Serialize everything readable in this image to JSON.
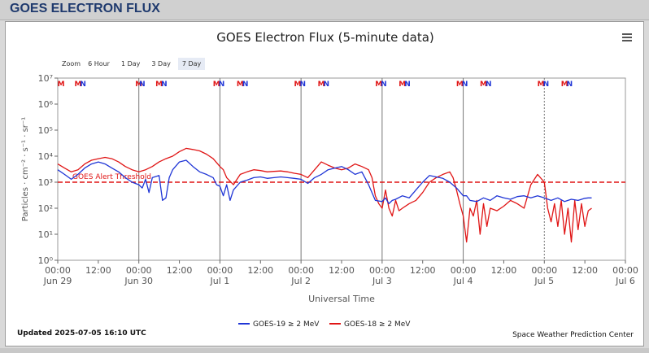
{
  "header": {
    "title": "GOES ELECTRON FLUX"
  },
  "zoom": {
    "label": "Zoom",
    "options": [
      "6 Hour",
      "1 Day",
      "3 Day",
      "7 Day"
    ],
    "active": "7 Day"
  },
  "footer": {
    "updated": "Updated 2025-07-05 16:10 UTC",
    "credit": "Space Weather Prediction Center"
  },
  "colors": {
    "goes19": "#1f35d6",
    "goes18": "#e01515",
    "threshold": "#e01515",
    "markerM": "#e01515",
    "markerN": "#1f35d6"
  },
  "chart_data": {
    "type": "line",
    "title": "GOES Electron Flux (5-minute data)",
    "xlabel": "Universal Time",
    "ylabel": "Particles · cm⁻² · s⁻¹ · sr⁻¹",
    "yscale": "log",
    "ylim": [
      1,
      10000000
    ],
    "y_ticks": [
      "10⁰",
      "10¹",
      "10²",
      "10³",
      "10⁴",
      "10⁵",
      "10⁶",
      "10⁷"
    ],
    "x_range_hours": [
      0,
      168
    ],
    "x_ticks": [
      {
        "h": 0,
        "time": "00:00",
        "date": "Jun 29"
      },
      {
        "h": 12,
        "time": "12:00",
        "date": ""
      },
      {
        "h": 24,
        "time": "00:00",
        "date": "Jun 30"
      },
      {
        "h": 36,
        "time": "12:00",
        "date": ""
      },
      {
        "h": 48,
        "time": "00:00",
        "date": "Jul 1"
      },
      {
        "h": 60,
        "time": "12:00",
        "date": ""
      },
      {
        "h": 72,
        "time": "00:00",
        "date": "Jul 2"
      },
      {
        "h": 84,
        "time": "12:00",
        "date": ""
      },
      {
        "h": 96,
        "time": "00:00",
        "date": "Jul 3"
      },
      {
        "h": 108,
        "time": "12:00",
        "date": ""
      },
      {
        "h": 120,
        "time": "00:00",
        "date": "Jul 4"
      },
      {
        "h": 132,
        "time": "12:00",
        "date": ""
      },
      {
        "h": 144,
        "time": "00:00",
        "date": "Jul 5"
      },
      {
        "h": 156,
        "time": "12:00",
        "date": ""
      },
      {
        "h": 168,
        "time": "00:00",
        "date": "Jul 6"
      }
    ],
    "threshold": {
      "value": 1000,
      "label": "GOES Alert Threshold"
    },
    "markers": [
      {
        "h": 1,
        "t": "M"
      },
      {
        "h": 6,
        "t": "M"
      },
      {
        "h": 7.5,
        "t": "N"
      },
      {
        "h": 24,
        "t": "M"
      },
      {
        "h": 25,
        "t": "N"
      },
      {
        "h": 30,
        "t": "M"
      },
      {
        "h": 31.5,
        "t": "N"
      },
      {
        "h": 47,
        "t": "M"
      },
      {
        "h": 48.5,
        "t": "N"
      },
      {
        "h": 54,
        "t": "M"
      },
      {
        "h": 55.5,
        "t": "N"
      },
      {
        "h": 71,
        "t": "M"
      },
      {
        "h": 72.5,
        "t": "N"
      },
      {
        "h": 78,
        "t": "M"
      },
      {
        "h": 79.5,
        "t": "N"
      },
      {
        "h": 95,
        "t": "M"
      },
      {
        "h": 96.5,
        "t": "N"
      },
      {
        "h": 102,
        "t": "M"
      },
      {
        "h": 103.5,
        "t": "N"
      },
      {
        "h": 119,
        "t": "M"
      },
      {
        "h": 120.5,
        "t": "N"
      },
      {
        "h": 126,
        "t": "M"
      },
      {
        "h": 127.5,
        "t": "N"
      },
      {
        "h": 143,
        "t": "M"
      },
      {
        "h": 144.5,
        "t": "N"
      },
      {
        "h": 150,
        "t": "M"
      },
      {
        "h": 151.5,
        "t": "N"
      }
    ],
    "series": [
      {
        "name": "GOES-19 ≥ 2 MeV",
        "color": "#1f35d6",
        "x": [
          0,
          2,
          4,
          6,
          8,
          10,
          12,
          14,
          16,
          18,
          20,
          22,
          24,
          25,
          26,
          27,
          28,
          30,
          31,
          32,
          33,
          34,
          36,
          38,
          40,
          42,
          44,
          46,
          47,
          48,
          49,
          50,
          51,
          52,
          54,
          56,
          58,
          60,
          62,
          64,
          66,
          68,
          70,
          72,
          74,
          76,
          78,
          80,
          82,
          84,
          86,
          88,
          90,
          92,
          94,
          96,
          97,
          98,
          99,
          100,
          102,
          104,
          106,
          108,
          110,
          112,
          114,
          116,
          118,
          120,
          121,
          122,
          124,
          126,
          128,
          130,
          132,
          134,
          136,
          138,
          140,
          142,
          144,
          146,
          148,
          150,
          152,
          154,
          156,
          157,
          158
        ],
        "y": [
          3000,
          2000,
          1300,
          2000,
          3500,
          5000,
          6000,
          5000,
          3500,
          2500,
          1500,
          1000,
          800,
          600,
          1300,
          400,
          1500,
          1800,
          200,
          250,
          1500,
          3000,
          6000,
          7000,
          4000,
          2500,
          2000,
          1500,
          800,
          700,
          300,
          800,
          200,
          500,
          1000,
          1200,
          1500,
          1600,
          1400,
          1500,
          1600,
          1500,
          1400,
          1300,
          900,
          1500,
          2000,
          3000,
          3500,
          4000,
          3000,
          2000,
          2500,
          800,
          200,
          180,
          250,
          150,
          200,
          220,
          300,
          250,
          500,
          1000,
          1800,
          1600,
          1400,
          1000,
          600,
          300,
          300,
          200,
          180,
          250,
          200,
          300,
          250,
          220,
          280,
          300,
          250,
          300,
          250,
          200,
          250,
          180,
          220,
          200,
          240,
          250,
          250
        ]
      },
      {
        "name": "GOES-18 ≥ 2 MeV",
        "color": "#e01515",
        "x": [
          0,
          2,
          4,
          6,
          8,
          10,
          12,
          14,
          16,
          18,
          20,
          22,
          24,
          26,
          28,
          30,
          32,
          34,
          36,
          38,
          40,
          42,
          44,
          46,
          48,
          49,
          50,
          52,
          54,
          56,
          58,
          60,
          62,
          64,
          66,
          68,
          70,
          72,
          74,
          76,
          78,
          80,
          82,
          84,
          86,
          88,
          90,
          92,
          93,
          94,
          95,
          96,
          97,
          98,
          99,
          100,
          101,
          102,
          104,
          106,
          108,
          110,
          112,
          114,
          116,
          117,
          118,
          119,
          120,
          121,
          122,
          123,
          124,
          125,
          126,
          127,
          128,
          130,
          132,
          134,
          136,
          138,
          140,
          142,
          144,
          145,
          146,
          147,
          148,
          149,
          150,
          151,
          152,
          153,
          154,
          155,
          156,
          157,
          158
        ],
        "y": [
          5000,
          3500,
          2500,
          3000,
          5000,
          7000,
          8000,
          9000,
          8000,
          6000,
          4000,
          3000,
          2500,
          3000,
          4000,
          6000,
          8000,
          10000,
          15000,
          20000,
          18000,
          16000,
          12000,
          8000,
          4000,
          3000,
          1500,
          800,
          2000,
          2500,
          3000,
          2800,
          2500,
          2600,
          2700,
          2500,
          2200,
          2000,
          1500,
          3000,
          6000,
          4500,
          3500,
          3000,
          3500,
          5000,
          4000,
          3000,
          1500,
          300,
          150,
          100,
          500,
          100,
          50,
          200,
          80,
          100,
          150,
          200,
          400,
          1000,
          1500,
          2000,
          2500,
          1500,
          500,
          150,
          50,
          5,
          100,
          50,
          200,
          10,
          150,
          20,
          100,
          80,
          120,
          200,
          150,
          100,
          800,
          2000,
          1000,
          100,
          30,
          150,
          20,
          200,
          10,
          100,
          5,
          200,
          15,
          150,
          20,
          80,
          100
        ]
      }
    ]
  }
}
